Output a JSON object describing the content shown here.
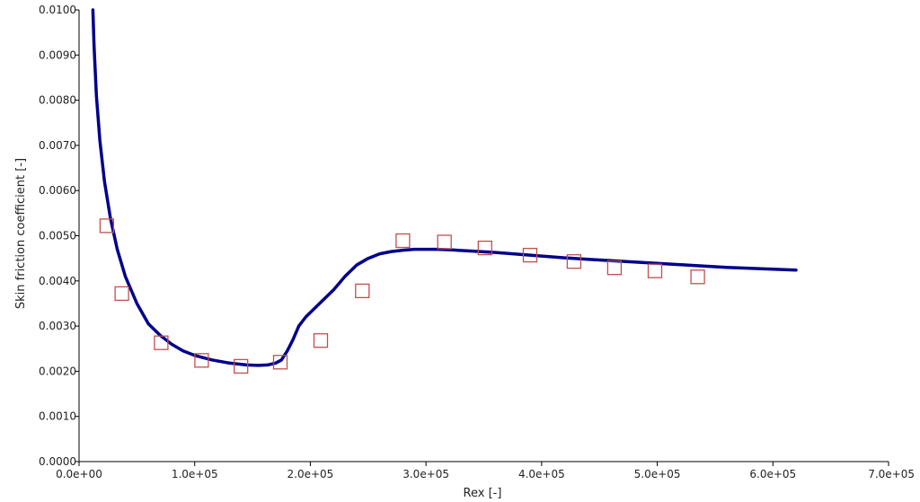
{
  "chart_data": {
    "type": "line",
    "xlabel": "Rex [-]",
    "ylabel": "Skin friction coefficient [-]",
    "xlim": [
      0,
      700000
    ],
    "ylim": [
      0,
      0.01
    ],
    "x_ticks": [
      0,
      100000,
      200000,
      300000,
      400000,
      500000,
      600000,
      700000
    ],
    "x_tick_labels": [
      "0.0e+00",
      "1.0e+05",
      "2.0e+05",
      "3.0e+05",
      "4.0e+05",
      "5.0e+05",
      "6.0e+05",
      "7.0e+05"
    ],
    "y_ticks": [
      0,
      0.001,
      0.002,
      0.003,
      0.004,
      0.005,
      0.006,
      0.007,
      0.008,
      0.009,
      0.01
    ],
    "y_tick_labels": [
      "0.0000",
      "0.0010",
      "0.0020",
      "0.0030",
      "0.0040",
      "0.0050",
      "0.0060",
      "0.0070",
      "0.0080",
      "0.0090",
      "0.0100"
    ],
    "grid": false,
    "legend": "none",
    "series": [
      {
        "style": "line",
        "color": "#00008b",
        "x": [
          12000,
          13000,
          15000,
          18000,
          22000,
          27000,
          33000,
          40000,
          50000,
          60000,
          70000,
          80000,
          90000,
          100000,
          115000,
          130000,
          145000,
          155000,
          163000,
          170000,
          175000,
          180000,
          185000,
          190000,
          196000,
          200000,
          210000,
          220000,
          230000,
          240000,
          250000,
          260000,
          270000,
          280000,
          290000,
          300000,
          310000,
          320000,
          340000,
          360000,
          380000,
          400000,
          420000,
          440000,
          460000,
          480000,
          500000,
          520000,
          540000,
          560000,
          580000,
          600000,
          620000
        ],
        "y": [
          0.01,
          0.0092,
          0.0081,
          0.0071,
          0.0062,
          0.0054,
          0.0047,
          0.0041,
          0.0035,
          0.00305,
          0.0028,
          0.0026,
          0.00245,
          0.00235,
          0.00225,
          0.00218,
          0.00214,
          0.00213,
          0.00214,
          0.00218,
          0.00225,
          0.00245,
          0.0027,
          0.003,
          0.0032,
          0.0033,
          0.00355,
          0.0038,
          0.0041,
          0.00435,
          0.0045,
          0.0046,
          0.00465,
          0.00468,
          0.0047,
          0.0047,
          0.0047,
          0.00469,
          0.00466,
          0.00463,
          0.00459,
          0.00455,
          0.00451,
          0.00448,
          0.00445,
          0.00442,
          0.00439,
          0.00436,
          0.00433,
          0.0043,
          0.00428,
          0.00426,
          0.00424
        ]
      },
      {
        "style": "markers",
        "marker": "square",
        "color": "#c0504d",
        "x": [
          24000,
          37000,
          71000,
          106000,
          140000,
          174000,
          209000,
          245000,
          280000,
          316000,
          351000,
          390000,
          428000,
          463000,
          498000,
          535000
        ],
        "y": [
          0.00522,
          0.00372,
          0.00263,
          0.00224,
          0.00211,
          0.0022,
          0.00268,
          0.00378,
          0.00489,
          0.00486,
          0.00473,
          0.00457,
          0.00443,
          0.00429,
          0.00422,
          0.00409
        ]
      }
    ]
  }
}
